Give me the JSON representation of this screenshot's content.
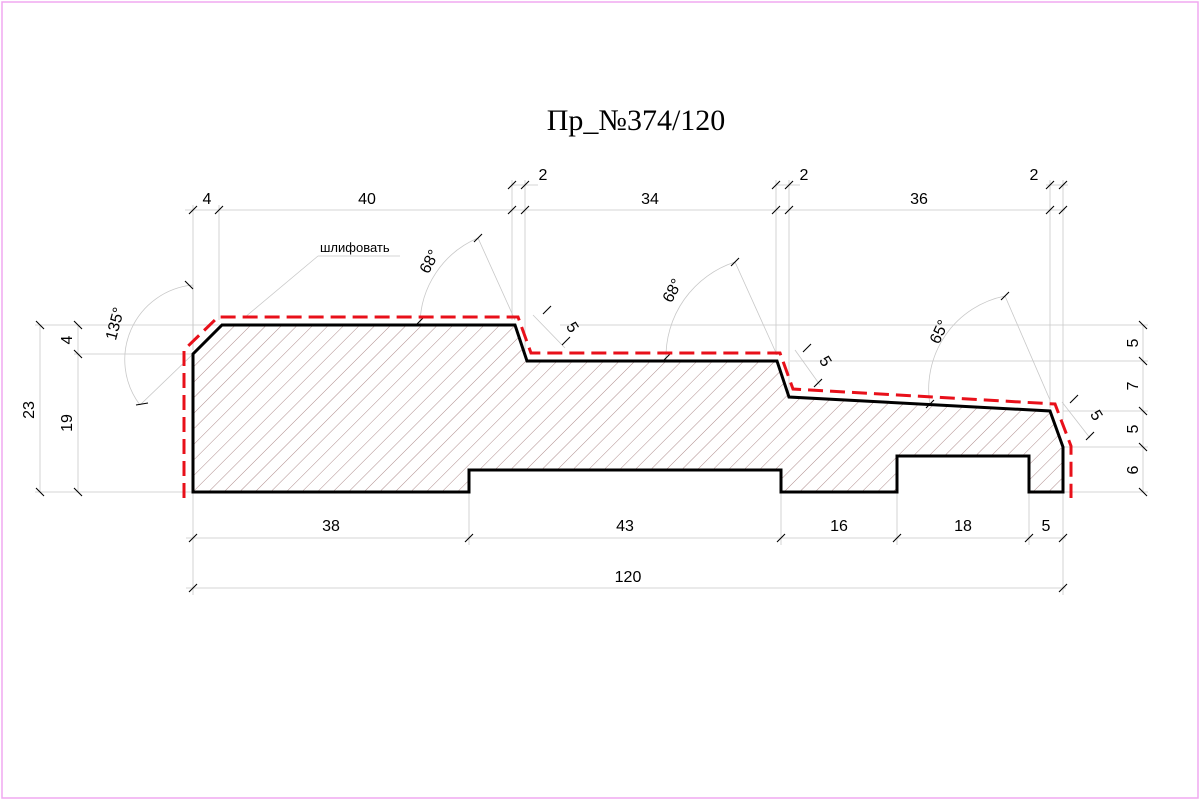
{
  "title": "Пр_№374/120",
  "note": "шлифовать",
  "colors": {
    "border": "#f0a8f0",
    "profile_stroke": "#000000",
    "finish_line": "#e8101a",
    "dimension_line": "#c8c8c8",
    "hatch": "#8c5a5a"
  },
  "dimensions": {
    "top": {
      "d4": "4",
      "d40": "40",
      "d2a": "2",
      "d34": "34",
      "d2b": "2",
      "d36": "36",
      "d2c": "2"
    },
    "bottom": {
      "d38": "38",
      "d43": "43",
      "d16": "16",
      "d18": "18",
      "d5": "5",
      "total": "120"
    },
    "left": {
      "d23": "23",
      "d19": "19",
      "d4": "4"
    },
    "right": {
      "d5a": "5",
      "d7": "7",
      "d5b": "5",
      "d6": "6"
    },
    "chamfers": {
      "c1": "5",
      "c2": "5",
      "c3": "5"
    }
  },
  "angles": {
    "a135": "135°",
    "a68a": "68°",
    "a68b": "68°",
    "a65": "65°"
  }
}
